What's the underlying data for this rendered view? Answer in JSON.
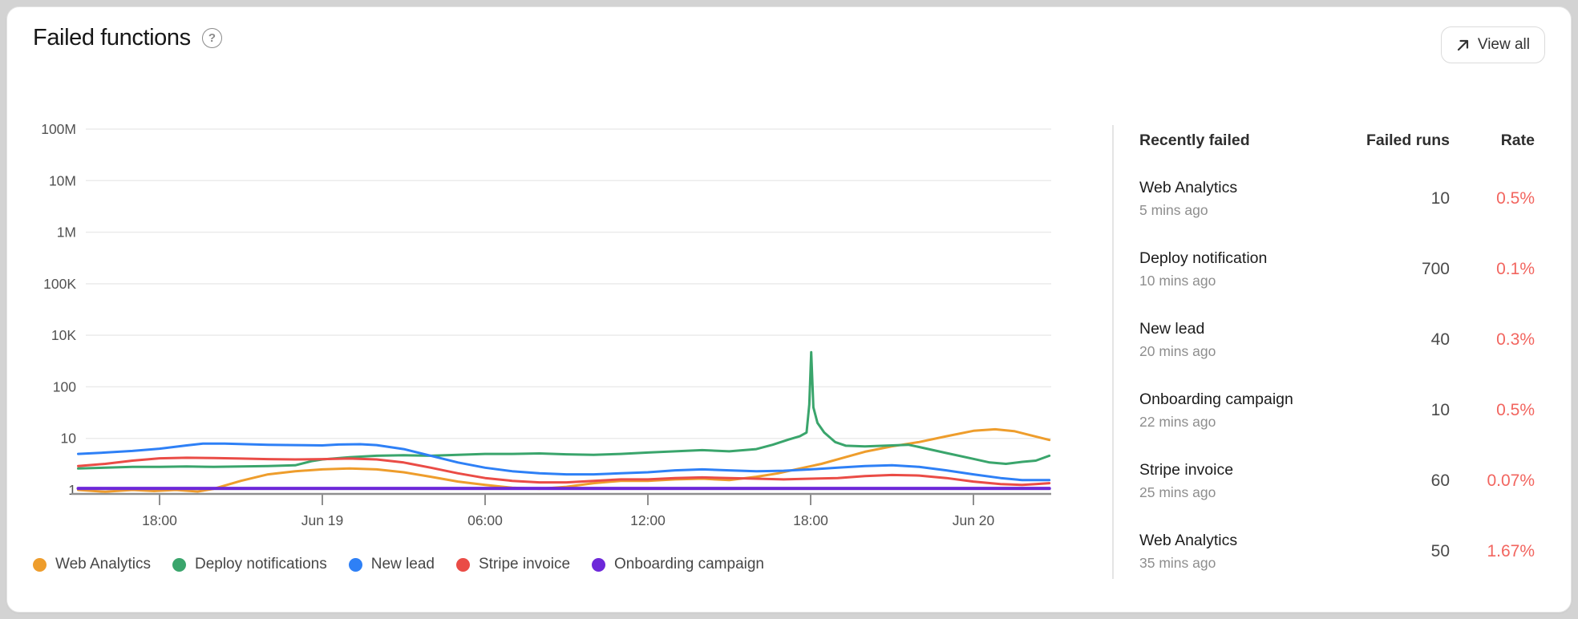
{
  "card": {
    "title": "Failed functions",
    "help_label": "?",
    "view_all_label": "View all"
  },
  "table": {
    "headers": {
      "name": "Recently failed",
      "runs": "Failed runs",
      "rate": "Rate"
    },
    "rate_color": "#f2655f",
    "rows": [
      {
        "name": "Web Analytics",
        "time": "5 mins ago",
        "runs": "10",
        "rate": "0.5%"
      },
      {
        "name": "Deploy notification",
        "time": "10 mins ago",
        "runs": "700",
        "rate": "0.1%"
      },
      {
        "name": "New lead",
        "time": "20 mins ago",
        "runs": "40",
        "rate": "0.3%"
      },
      {
        "name": "Onboarding campaign",
        "time": "22 mins ago",
        "runs": "10",
        "rate": "0.5%"
      },
      {
        "name": "Stripe invoice",
        "time": "25 mins ago",
        "runs": "60",
        "rate": "0.07%"
      },
      {
        "name": "Web Analytics",
        "time": "35 mins ago",
        "runs": "50",
        "rate": "1.67%"
      }
    ]
  },
  "chart_data": {
    "type": "line",
    "y_scale": "log (labeled ticks equally spaced, 1K omitted)",
    "y_ticks": [
      "1",
      "10",
      "100",
      "10K",
      "100K",
      "1M",
      "10M",
      "100M"
    ],
    "y_tick_values": [
      1,
      10,
      100,
      10000,
      100000,
      1000000,
      10000000,
      100000000
    ],
    "x_ticks": [
      {
        "label": "18:00",
        "t": 3
      },
      {
        "label": "Jun 19",
        "t": 9
      },
      {
        "label": "06:00",
        "t": 15
      },
      {
        "label": "12:00",
        "t": 21
      },
      {
        "label": "18:00",
        "t": 27
      },
      {
        "label": "Jun 20",
        "t": 33
      }
    ],
    "x_range_hours": [
      0,
      35.8
    ],
    "grid_color": "#ebebeb",
    "axis_color": "#8f8f8f",
    "label_color": "#525252",
    "series": [
      {
        "name": "Web Analytics",
        "color": "#ee9d2c",
        "points": [
          [
            0,
            1.0
          ],
          [
            1,
            0.92
          ],
          [
            2,
            1.0
          ],
          [
            2.8,
            0.95
          ],
          [
            3.6,
            1.0
          ],
          [
            4.4,
            0.93
          ],
          [
            5,
            1.05
          ],
          [
            6,
            1.5
          ],
          [
            7,
            2.0
          ],
          [
            8,
            2.3
          ],
          [
            9,
            2.5
          ],
          [
            10,
            2.6
          ],
          [
            11,
            2.5
          ],
          [
            12,
            2.2
          ],
          [
            13,
            1.8
          ],
          [
            14,
            1.45
          ],
          [
            15,
            1.25
          ],
          [
            16,
            1.1
          ],
          [
            17,
            1.05
          ],
          [
            18,
            1.15
          ],
          [
            19,
            1.35
          ],
          [
            20,
            1.5
          ],
          [
            21,
            1.5
          ],
          [
            22,
            1.6
          ],
          [
            23,
            1.65
          ],
          [
            24,
            1.55
          ],
          [
            25,
            1.8
          ],
          [
            25.8,
            2.1
          ],
          [
            26.6,
            2.6
          ],
          [
            27.4,
            3.2
          ],
          [
            28.2,
            4.2
          ],
          [
            29,
            5.5
          ],
          [
            30,
            7.0
          ],
          [
            31,
            8.5
          ],
          [
            32,
            11
          ],
          [
            33,
            14
          ],
          [
            33.8,
            15
          ],
          [
            34.5,
            13.8
          ],
          [
            35.1,
            11.5
          ],
          [
            35.8,
            9.3
          ]
        ]
      },
      {
        "name": "Deploy notifications",
        "color": "#3aa56c",
        "points": [
          [
            0,
            2.6
          ],
          [
            1,
            2.7
          ],
          [
            2,
            2.8
          ],
          [
            3,
            2.8
          ],
          [
            4,
            2.85
          ],
          [
            5,
            2.8
          ],
          [
            6,
            2.85
          ],
          [
            7,
            2.9
          ],
          [
            8,
            3.0
          ],
          [
            8.6,
            3.6
          ],
          [
            9,
            3.9
          ],
          [
            10,
            4.3
          ],
          [
            11,
            4.6
          ],
          [
            12,
            4.7
          ],
          [
            13,
            4.6
          ],
          [
            14,
            4.8
          ],
          [
            15,
            5.0
          ],
          [
            16,
            5.0
          ],
          [
            17,
            5.1
          ],
          [
            18,
            4.9
          ],
          [
            19,
            4.8
          ],
          [
            20,
            5.0
          ],
          [
            21,
            5.3
          ],
          [
            22,
            5.6
          ],
          [
            23,
            5.9
          ],
          [
            24,
            5.6
          ],
          [
            25,
            6.2
          ],
          [
            25.6,
            7.5
          ],
          [
            26.2,
            9.5
          ],
          [
            26.6,
            11
          ],
          [
            26.85,
            13
          ],
          [
            26.95,
            45
          ],
          [
            27.02,
            2200
          ],
          [
            27.1,
            40
          ],
          [
            27.25,
            20
          ],
          [
            27.5,
            13
          ],
          [
            27.9,
            8.5
          ],
          [
            28.3,
            7.2
          ],
          [
            29,
            7.0
          ],
          [
            30,
            7.3
          ],
          [
            30.6,
            7.5
          ],
          [
            31,
            6.8
          ],
          [
            32,
            5.2
          ],
          [
            33,
            4.0
          ],
          [
            33.6,
            3.4
          ],
          [
            34.2,
            3.2
          ],
          [
            34.8,
            3.5
          ],
          [
            35.3,
            3.7
          ],
          [
            35.8,
            4.6
          ]
        ]
      },
      {
        "name": "New lead",
        "color": "#2e80f6",
        "points": [
          [
            0,
            5.0
          ],
          [
            1,
            5.3
          ],
          [
            2,
            5.7
          ],
          [
            3,
            6.3
          ],
          [
            4,
            7.3
          ],
          [
            4.6,
            7.9
          ],
          [
            5.4,
            7.9
          ],
          [
            6.2,
            7.7
          ],
          [
            7,
            7.5
          ],
          [
            8,
            7.4
          ],
          [
            9,
            7.3
          ],
          [
            9.6,
            7.6
          ],
          [
            10.4,
            7.7
          ],
          [
            11,
            7.4
          ],
          [
            12,
            6.2
          ],
          [
            13,
            4.6
          ],
          [
            14,
            3.4
          ],
          [
            15,
            2.7
          ],
          [
            16,
            2.3
          ],
          [
            17,
            2.1
          ],
          [
            18,
            2.0
          ],
          [
            19,
            2.0
          ],
          [
            20,
            2.1
          ],
          [
            21,
            2.2
          ],
          [
            22,
            2.4
          ],
          [
            23,
            2.5
          ],
          [
            24,
            2.4
          ],
          [
            25,
            2.3
          ],
          [
            26,
            2.35
          ],
          [
            27,
            2.5
          ],
          [
            28,
            2.7
          ],
          [
            29,
            2.9
          ],
          [
            30,
            3.0
          ],
          [
            31,
            2.8
          ],
          [
            32,
            2.4
          ],
          [
            33,
            2.0
          ],
          [
            34,
            1.7
          ],
          [
            34.8,
            1.55
          ],
          [
            35.8,
            1.55
          ]
        ]
      },
      {
        "name": "Stripe invoice",
        "color": "#ea4c46",
        "points": [
          [
            0,
            2.9
          ],
          [
            1,
            3.2
          ],
          [
            2,
            3.7
          ],
          [
            3,
            4.1
          ],
          [
            4,
            4.2
          ],
          [
            5,
            4.15
          ],
          [
            6,
            4.05
          ],
          [
            7,
            3.95
          ],
          [
            8,
            3.9
          ],
          [
            9,
            3.95
          ],
          [
            10,
            4.05
          ],
          [
            11,
            3.9
          ],
          [
            12,
            3.4
          ],
          [
            13,
            2.7
          ],
          [
            14,
            2.1
          ],
          [
            15,
            1.7
          ],
          [
            16,
            1.5
          ],
          [
            17,
            1.4
          ],
          [
            18,
            1.4
          ],
          [
            19,
            1.5
          ],
          [
            20,
            1.6
          ],
          [
            21,
            1.6
          ],
          [
            22,
            1.7
          ],
          [
            23,
            1.75
          ],
          [
            24,
            1.7
          ],
          [
            25,
            1.65
          ],
          [
            26,
            1.6
          ],
          [
            27,
            1.65
          ],
          [
            28,
            1.7
          ],
          [
            29,
            1.85
          ],
          [
            30,
            1.95
          ],
          [
            31,
            1.9
          ],
          [
            32,
            1.7
          ],
          [
            33,
            1.45
          ],
          [
            34,
            1.3
          ],
          [
            34.8,
            1.25
          ],
          [
            35.3,
            1.3
          ],
          [
            35.8,
            1.35
          ]
        ]
      },
      {
        "name": "Onboarding campaign",
        "color": "#6d28d9",
        "points": [
          [
            0,
            1.07
          ],
          [
            35.8,
            1.07
          ]
        ]
      }
    ]
  }
}
